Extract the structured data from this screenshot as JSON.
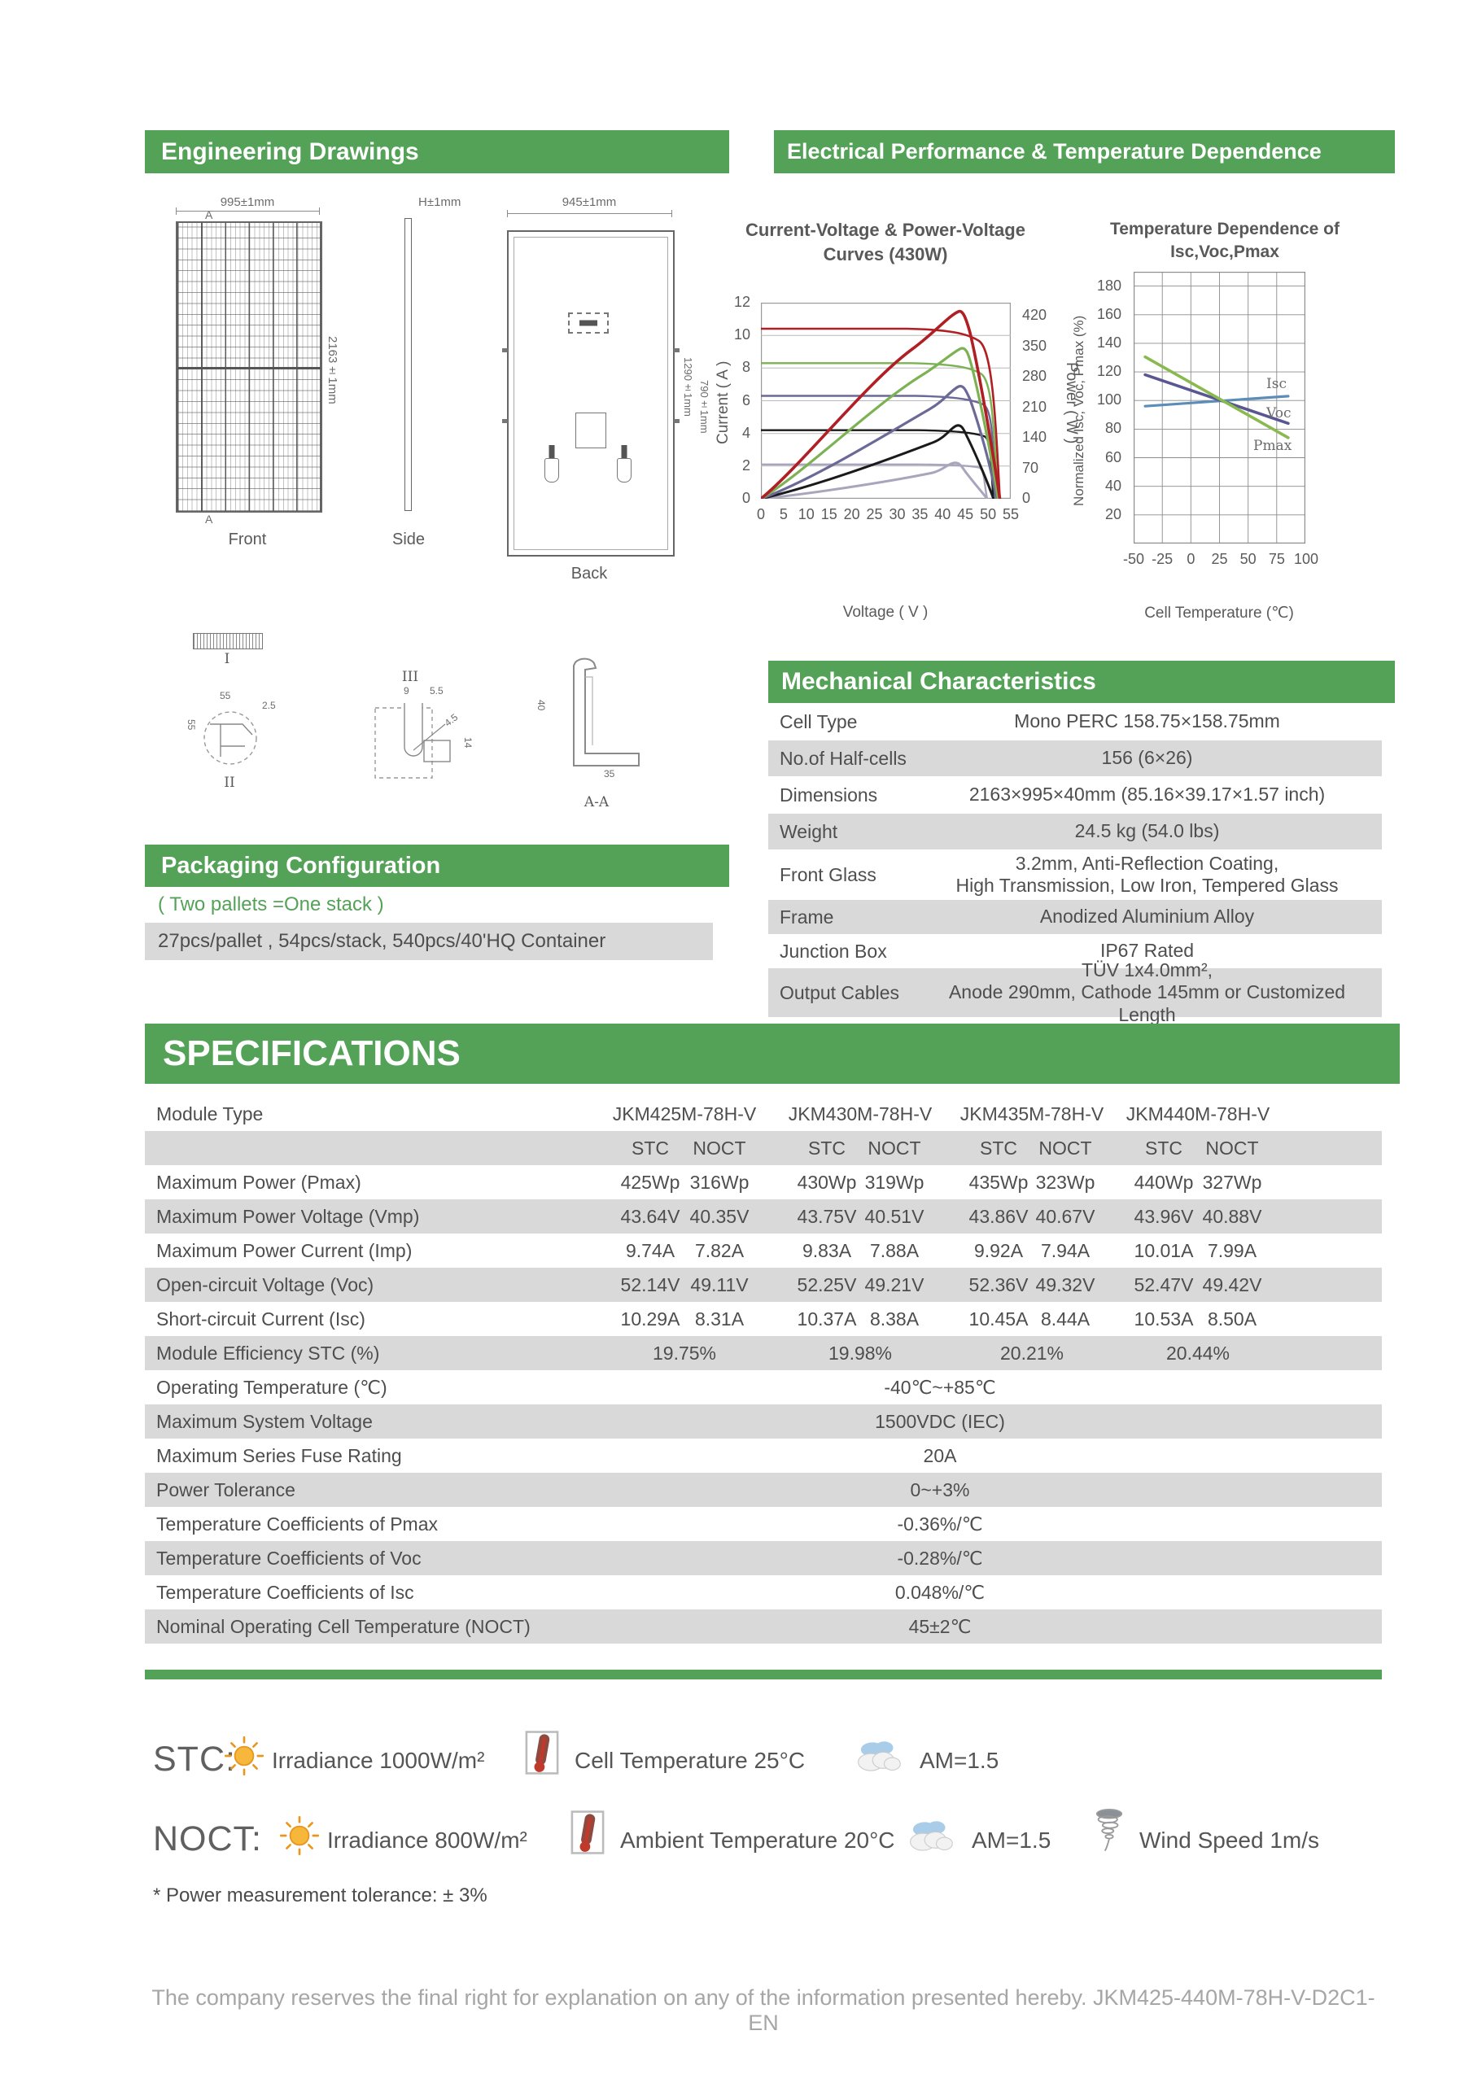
{
  "page": {
    "footer": "The company reserves the final right for explanation on any of the information presented hereby.  JKM425-440M-78H-V-D2C1-EN",
    "footnote": "* Power measurement tolerance: ± 3%"
  },
  "colors": {
    "green": "#54a258",
    "row_gray": "#d9d9d9",
    "iv_red": "#b01f24",
    "iv_green": "#7cb254",
    "iv_slate": "#6b6996",
    "iv_black": "#1a1a1a",
    "iv_light": "#a9a5bd",
    "isc_line": "#5b8db8",
    "voc_line": "#5a5694",
    "pmax_line": "#8aba4f"
  },
  "eng": {
    "title": "Engineering Drawings",
    "front": {
      "label": "Front",
      "dim_width": "995±1mm",
      "dim_height": "2163±1mm",
      "section_marker": "A"
    },
    "side": {
      "label": "Side",
      "dim": "H±1mm"
    },
    "back": {
      "label": "Back",
      "dim_width": "945±1mm",
      "dim_hole1": "1290±1mm",
      "dim_hole2": "790±1mm"
    },
    "details": {
      "d1": "I",
      "d2": "II",
      "d3": "III",
      "aa": "A-A",
      "d2_dims": [
        "55",
        "55",
        "2.5"
      ],
      "d3_dims": [
        "9",
        "5.5",
        "4.5",
        "14"
      ],
      "aa_dims": [
        "40",
        "35"
      ]
    }
  },
  "electrical": {
    "title": "Electrical Performance & Temperature Dependence",
    "iv": {
      "title": "Current-Voltage & Power-Voltage Curves (430W)",
      "xlabel": "Voltage ( V )",
      "ylabel": "Current ( A )",
      "y2label": "Power ( W )",
      "xticks": [
        "0",
        "5",
        "10",
        "15",
        "20",
        "25",
        "30",
        "35",
        "40",
        "45",
        "50",
        "55"
      ],
      "yticks": [
        "0",
        "2",
        "4",
        "6",
        "8",
        "10",
        "12"
      ],
      "y2ticks": [
        "0",
        "70",
        "140",
        "210",
        "280",
        "350",
        "420"
      ]
    },
    "temp": {
      "title": "Temperature Dependence of Isc,Voc,Pmax",
      "xlabel": "Cell Temperature (℃)",
      "ylabel": "Normalized Isc, Voc, Pmax (%)",
      "xticks": [
        "-50",
        "-25",
        "0",
        "25",
        "50",
        "75",
        "100"
      ],
      "yticks": [
        "20",
        "40",
        "60",
        "80",
        "100",
        "120",
        "140",
        "160",
        "180"
      ],
      "series_labels": {
        "isc": "Isc",
        "voc": "Voc",
        "pmax": "Pmax"
      }
    }
  },
  "mechanical": {
    "title": "Mechanical Characteristics",
    "rows": [
      {
        "label": "Cell Type",
        "value": "Mono PERC 158.75×158.75mm"
      },
      {
        "label": "No.of Half-cells",
        "value": "156 (6×26)"
      },
      {
        "label": "Dimensions",
        "value": "2163×995×40mm (85.16×39.17×1.57 inch)"
      },
      {
        "label": "Weight",
        "value": "24.5 kg (54.0 lbs)"
      },
      {
        "label": "Front Glass",
        "value": "3.2mm, Anti-Reflection Coating,",
        "value2": "High Transmission, Low Iron, Tempered Glass"
      },
      {
        "label": "Frame",
        "value": "Anodized Aluminium Alloy"
      },
      {
        "label": "Junction Box",
        "value": "IP67 Rated"
      },
      {
        "label": "Output Cables",
        "value": "TÜV 1x4.0mm²,",
        "value2": "Anode 290mm, Cathode 145mm or Customized Length"
      }
    ]
  },
  "packaging": {
    "title": "Packaging Configuration",
    "note": "( Two pallets =One stack )",
    "row": "27pcs/pallet , 54pcs/stack, 540pcs/40'HQ Container"
  },
  "spec": {
    "title": "SPECIFICATIONS",
    "module_type_label": "Module Type",
    "modules": [
      "JKM425M-78H-V",
      "JKM430M-78H-V",
      "JKM435M-78H-V",
      "JKM440M-78H-V"
    ],
    "stc": "STC",
    "noct": "NOCT",
    "rows": [
      {
        "label": "Maximum Power (Pmax)",
        "values": [
          "425Wp",
          "316Wp",
          "430Wp",
          "319Wp",
          "435Wp",
          "323Wp",
          "440Wp",
          "327Wp"
        ]
      },
      {
        "label": "Maximum Power Voltage (Vmp)",
        "values": [
          "43.64V",
          "40.35V",
          "43.75V",
          "40.51V",
          "43.86V",
          "40.67V",
          "43.96V",
          "40.88V"
        ]
      },
      {
        "label": "Maximum Power Current (Imp)",
        "values": [
          "9.74A",
          "7.82A",
          "9.83A",
          "7.88A",
          "9.92A",
          "7.94A",
          "10.01A",
          "7.99A"
        ]
      },
      {
        "label": "Open-circuit Voltage (Voc)",
        "values": [
          "52.14V",
          "49.11V",
          "52.25V",
          "49.21V",
          "52.36V",
          "49.32V",
          "52.47V",
          "49.42V"
        ]
      },
      {
        "label": "Short-circuit Current (Isc)",
        "values": [
          "10.29A",
          "8.31A",
          "10.37A",
          "8.38A",
          "10.45A",
          "8.44A",
          "10.53A",
          "8.50A"
        ]
      }
    ],
    "efficiency": {
      "label": "Module Efficiency STC (%)",
      "values": [
        "19.75%",
        "19.98%",
        "20.21%",
        "20.44%"
      ]
    },
    "singles": [
      {
        "label": "Operating Temperature (℃)",
        "value": "-40℃~+85℃"
      },
      {
        "label": "Maximum System Voltage",
        "value": "1500VDC (IEC)"
      },
      {
        "label": "Maximum Series Fuse Rating",
        "value": "20A"
      },
      {
        "label": "Power Tolerance",
        "value": "0~+3%"
      },
      {
        "label": "Temperature Coefficients of Pmax",
        "value": "-0.36%/℃"
      },
      {
        "label": "Temperature Coefficients of Voc",
        "value": "-0.28%/℃"
      },
      {
        "label": "Temperature Coefficients of Isc",
        "value": "0.048%/℃"
      },
      {
        "label": "Nominal Operating Cell Temperature  (NOCT)",
        "value": "45±2℃"
      }
    ]
  },
  "conditions": {
    "stc_label": "STC:",
    "stc_items": {
      "irradiance": "Irradiance 1000W/m²",
      "cell_temp": "Cell Temperature 25°C",
      "am": "AM=1.5"
    },
    "noct_label": "NOCT:",
    "noct_items": {
      "irradiance": "Irradiance 800W/m²",
      "ambient": "Ambient Temperature 20°C",
      "am": "AM=1.5",
      "wind": "Wind Speed 1m/s"
    }
  },
  "chart_data": [
    {
      "type": "line",
      "title": "Current-Voltage & Power-Voltage Curves (430W)",
      "xlabel": "Voltage ( V )",
      "ylabel": "Current ( A )",
      "y2label": "Power ( W )",
      "xlim": [
        0,
        55
      ],
      "ylim": [
        0,
        12
      ],
      "y2lim": [
        0,
        450
      ],
      "grid": "horizontal",
      "series": [
        {
          "name": "I-V red",
          "color": "#b01f24",
          "axis": "current",
          "points": [
            [
              0,
              10.4
            ],
            [
              20,
              10.4
            ],
            [
              35,
              10.3
            ],
            [
              43.5,
              9.9
            ],
            [
              48,
              8.5
            ],
            [
              52.6,
              0
            ]
          ]
        },
        {
          "name": "P-V red",
          "color": "#b01f24",
          "axis": "power",
          "points": [
            [
              0,
              0
            ],
            [
              10,
              104
            ],
            [
              25,
              256
            ],
            [
              35,
              360
            ],
            [
              43.5,
              430
            ],
            [
              48,
              330
            ],
            [
              52.6,
              0
            ]
          ]
        },
        {
          "name": "I-V green",
          "color": "#7cb254",
          "axis": "current",
          "points": [
            [
              0,
              8.3
            ],
            [
              20,
              8.3
            ],
            [
              35,
              8.25
            ],
            [
              44,
              7.85
            ],
            [
              48,
              6.8
            ],
            [
              52.2,
              0
            ]
          ]
        },
        {
          "name": "P-V green",
          "color": "#7cb254",
          "axis": "power",
          "points": [
            [
              0,
              0
            ],
            [
              10,
              83
            ],
            [
              25,
              205
            ],
            [
              35,
              288
            ],
            [
              44,
              345
            ],
            [
              48,
              270
            ],
            [
              52.2,
              0
            ]
          ]
        },
        {
          "name": "I-V slate",
          "color": "#6b6996",
          "axis": "current",
          "points": [
            [
              0,
              6.3
            ],
            [
              20,
              6.3
            ],
            [
              36,
              6.25
            ],
            [
              43.5,
              5.95
            ],
            [
              48,
              5.1
            ],
            [
              51.8,
              0
            ]
          ]
        },
        {
          "name": "P-V slate",
          "color": "#6b6996",
          "axis": "power",
          "points": [
            [
              0,
              0
            ],
            [
              10,
              63
            ],
            [
              25,
              156
            ],
            [
              35,
              218
            ],
            [
              43.5,
              258
            ],
            [
              48,
              200
            ],
            [
              51.8,
              0
            ]
          ]
        },
        {
          "name": "I-V black",
          "color": "#1a1a1a",
          "axis": "current",
          "points": [
            [
              0,
              4.2
            ],
            [
              20,
              4.2
            ],
            [
              36,
              4.17
            ],
            [
              43,
              4.0
            ],
            [
              48,
              3.4
            ],
            [
              51.2,
              0
            ]
          ]
        },
        {
          "name": "P-V black",
          "color": "#1a1a1a",
          "axis": "power",
          "points": [
            [
              0,
              0
            ],
            [
              10,
              42
            ],
            [
              25,
              104
            ],
            [
              35,
              145
            ],
            [
              43,
              168
            ],
            [
              48,
              128
            ],
            [
              51.2,
              0
            ]
          ]
        },
        {
          "name": "I-V light",
          "color": "#a9a5bd",
          "axis": "current",
          "points": [
            [
              0,
              2.1
            ],
            [
              20,
              2.1
            ],
            [
              36,
              2.08
            ],
            [
              42.5,
              2.0
            ],
            [
              46,
              1.7
            ],
            [
              49.8,
              0
            ]
          ]
        },
        {
          "name": "P-V light",
          "color": "#a9a5bd",
          "axis": "power",
          "points": [
            [
              0,
              0
            ],
            [
              10,
              21
            ],
            [
              25,
              52
            ],
            [
              35,
              72
            ],
            [
              42.5,
              80
            ],
            [
              46,
              62
            ],
            [
              49.8,
              0
            ]
          ]
        }
      ]
    },
    {
      "type": "line",
      "title": "Temperature Dependence of Isc,Voc,Pmax",
      "xlabel": "Cell Temperature (℃)",
      "ylabel": "Normalized Isc, Voc, Pmax (%)",
      "xlim": [
        -50,
        100
      ],
      "ylim": [
        0,
        190
      ],
      "grid": "both",
      "series": [
        {
          "name": "Isc",
          "color": "#5b8db8",
          "points": [
            [
              -40,
              96
            ],
            [
              25,
              100
            ],
            [
              85,
              103
            ]
          ]
        },
        {
          "name": "Voc",
          "color": "#5a5694",
          "points": [
            [
              -40,
              118
            ],
            [
              25,
              100
            ],
            [
              85,
              84
            ]
          ]
        },
        {
          "name": "Pmax",
          "color": "#8aba4f",
          "points": [
            [
              -40,
              130
            ],
            [
              25,
              100
            ],
            [
              85,
              74
            ]
          ]
        }
      ]
    }
  ]
}
